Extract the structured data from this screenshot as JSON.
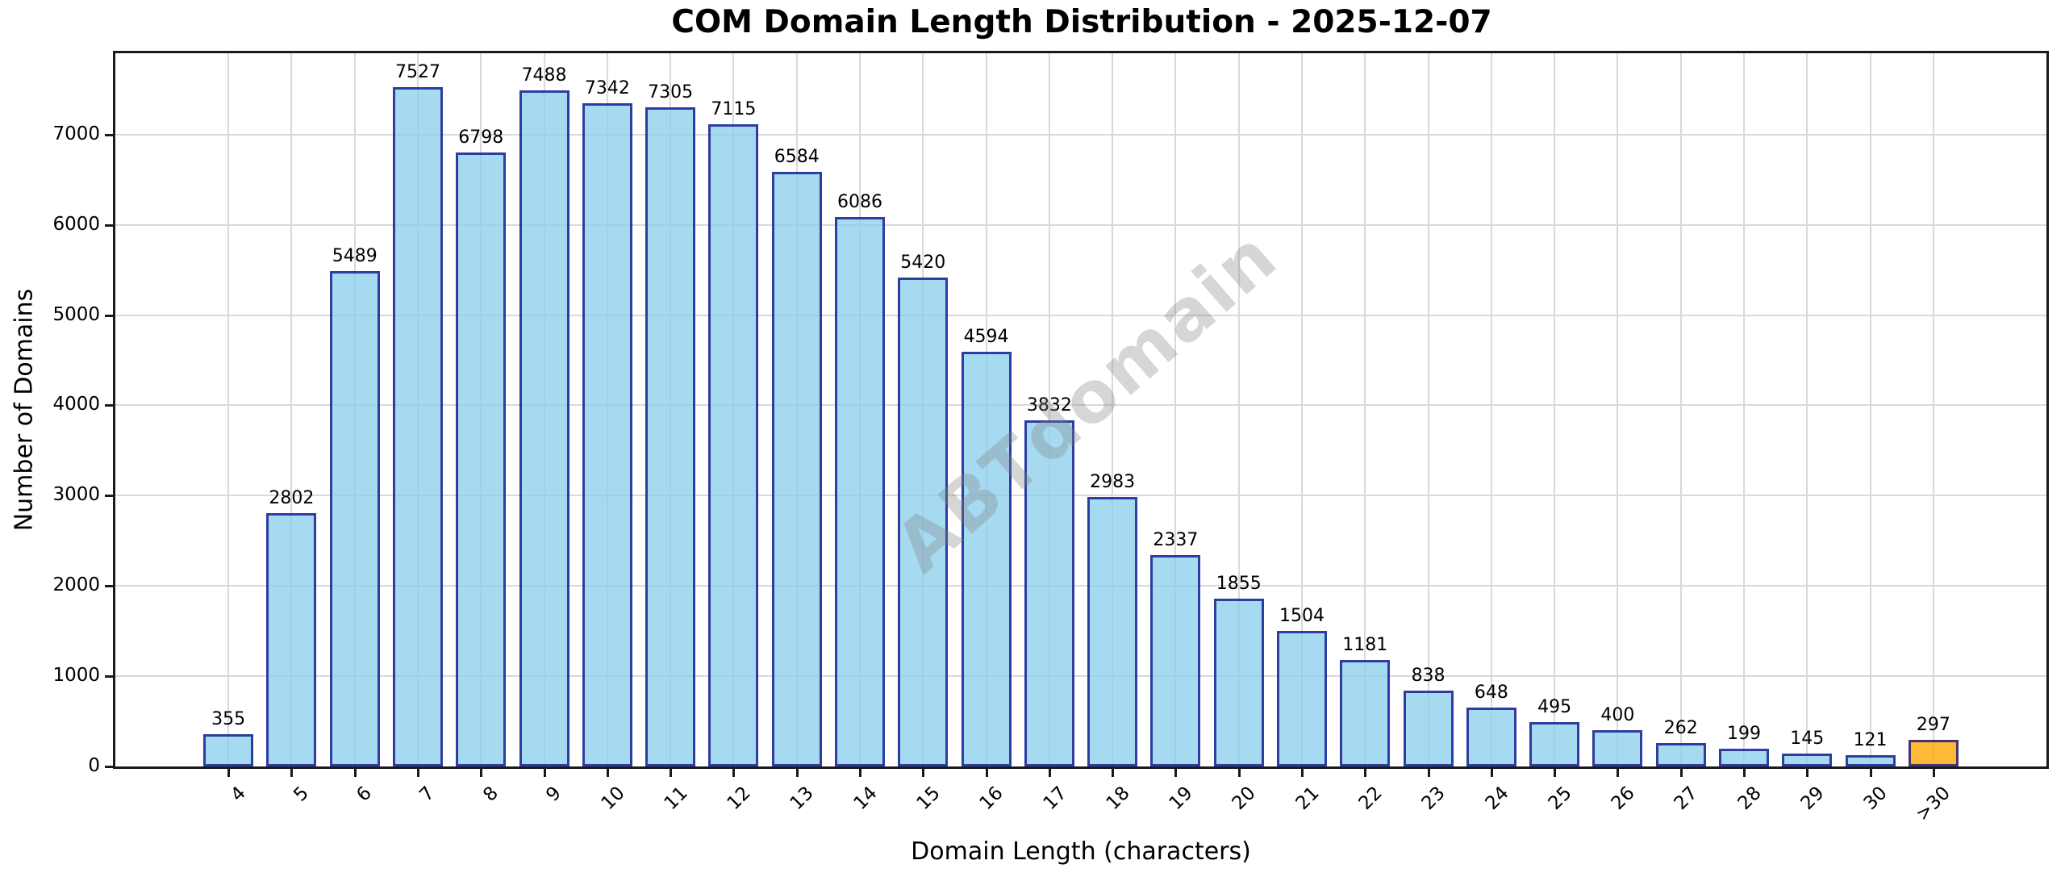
{
  "chart_data": {
    "type": "bar",
    "title": "COM Domain Length Distribution - 2025-12-07",
    "xlabel": "Domain Length (characters)",
    "ylabel": "Number of Domains",
    "categories": [
      "4",
      "5",
      "6",
      "7",
      "8",
      "9",
      "10",
      "11",
      "12",
      "13",
      "14",
      "15",
      "16",
      "17",
      "18",
      "19",
      "20",
      "21",
      "22",
      "23",
      "24",
      "25",
      "26",
      "27",
      "28",
      "29",
      "30",
      ">30"
    ],
    "values": [
      355,
      2802,
      5489,
      7527,
      6798,
      7488,
      7342,
      7305,
      7115,
      6584,
      6086,
      5420,
      4594,
      3832,
      2983,
      2337,
      1855,
      1504,
      1181,
      838,
      648,
      495,
      400,
      262,
      199,
      145,
      121,
      297
    ],
    "yticks": [
      0,
      1000,
      2000,
      3000,
      4000,
      5000,
      6000,
      7000
    ],
    "ylim": [
      0,
      7900
    ],
    "grid": true,
    "legend_position": "none",
    "watermark": "ABTdomain",
    "highlight_category": ">30",
    "colors": {
      "bar_fill": "rgba(135,206,235,0.75)",
      "bar_edge": "rgba(0,0,128,0.72)",
      "highlight_fill": "rgba(255,165,0,0.78)",
      "grid": "#d9d9d9",
      "spine": "#1a1a1a",
      "watermark": "rgba(128,128,128,0.32)"
    }
  }
}
